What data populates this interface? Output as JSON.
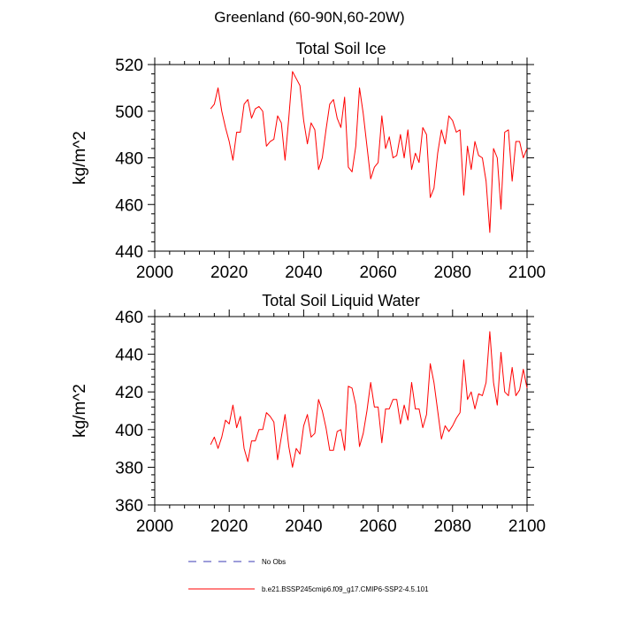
{
  "title": "Greenland (60-90N,60-20W)",
  "colors": {
    "model": "#ff0000",
    "obs": "#3b3bb5",
    "axis": "#000000"
  },
  "legend": {
    "obs_label": "No Obs",
    "model_label": "b.e21.BSSP245cmip6.f09_g17.CMIP6-SSP2-4.5.101"
  },
  "chart_data": [
    {
      "type": "line",
      "title": "Total Soil Ice",
      "xlabel": "",
      "ylabel": "kg/m^2",
      "xlim": [
        2000,
        2100
      ],
      "ylim": [
        440,
        520
      ],
      "xticks": [
        2000,
        2020,
        2040,
        2060,
        2080,
        2100
      ],
      "yticks": [
        440,
        460,
        480,
        500,
        520
      ],
      "series": [
        {
          "name": "b.e21.BSSP245cmip6.f09_g17.CMIP6-SSP2-4.5.101",
          "x": [
            2015,
            2016,
            2017,
            2018,
            2019,
            2020,
            2021,
            2022,
            2023,
            2024,
            2025,
            2026,
            2027,
            2028,
            2029,
            2030,
            2031,
            2032,
            2033,
            2034,
            2035,
            2036,
            2037,
            2038,
            2039,
            2040,
            2041,
            2042,
            2043,
            2044,
            2045,
            2046,
            2047,
            2048,
            2049,
            2050,
            2051,
            2052,
            2053,
            2054,
            2055,
            2056,
            2057,
            2058,
            2059,
            2060,
            2061,
            2062,
            2063,
            2064,
            2065,
            2066,
            2067,
            2068,
            2069,
            2070,
            2071,
            2072,
            2073,
            2074,
            2075,
            2076,
            2077,
            2078,
            2079,
            2080,
            2081,
            2082,
            2083,
            2084,
            2085,
            2086,
            2087,
            2088,
            2089,
            2090,
            2091,
            2092,
            2093,
            2094,
            2095,
            2096,
            2097,
            2098,
            2099,
            2100
          ],
          "values": [
            501,
            503,
            510,
            500,
            493,
            487,
            479,
            491,
            491,
            503,
            505,
            497,
            501,
            502,
            500,
            485,
            487,
            488,
            498,
            495,
            479,
            497,
            517,
            514,
            511,
            496,
            486,
            495,
            492,
            475,
            480,
            492,
            503,
            505,
            497,
            493,
            506,
            476,
            474,
            485,
            510,
            499,
            485,
            471,
            476,
            478,
            498,
            484,
            489,
            480,
            481,
            490,
            480,
            492,
            475,
            482,
            478,
            493,
            490,
            463,
            467,
            482,
            492,
            486,
            498,
            496,
            491,
            492,
            464,
            485,
            475,
            487,
            481,
            480,
            470,
            448,
            484,
            480,
            458,
            491,
            492,
            470,
            487,
            487,
            480,
            484
          ]
        }
      ]
    },
    {
      "type": "line",
      "title": "Total Soil Liquid Water",
      "xlabel": "",
      "ylabel": "kg/m^2",
      "xlim": [
        2000,
        2100
      ],
      "ylim": [
        360,
        460
      ],
      "xticks": [
        2000,
        2020,
        2040,
        2060,
        2080,
        2100
      ],
      "yticks": [
        360,
        380,
        400,
        420,
        440,
        460
      ],
      "series": [
        {
          "name": "b.e21.BSSP245cmip6.f09_g17.CMIP6-SSP2-4.5.101",
          "x": [
            2015,
            2016,
            2017,
            2018,
            2019,
            2020,
            2021,
            2022,
            2023,
            2024,
            2025,
            2026,
            2027,
            2028,
            2029,
            2030,
            2031,
            2032,
            2033,
            2034,
            2035,
            2036,
            2037,
            2038,
            2039,
            2040,
            2041,
            2042,
            2043,
            2044,
            2045,
            2046,
            2047,
            2048,
            2049,
            2050,
            2051,
            2052,
            2053,
            2054,
            2055,
            2056,
            2057,
            2058,
            2059,
            2060,
            2061,
            2062,
            2063,
            2064,
            2065,
            2066,
            2067,
            2068,
            2069,
            2070,
            2071,
            2072,
            2073,
            2074,
            2075,
            2076,
            2077,
            2078,
            2079,
            2080,
            2081,
            2082,
            2083,
            2084,
            2085,
            2086,
            2087,
            2088,
            2089,
            2090,
            2091,
            2092,
            2093,
            2094,
            2095,
            2096,
            2097,
            2098,
            2099,
            2100
          ],
          "values": [
            392,
            396,
            390,
            396,
            405,
            403,
            413,
            401,
            407,
            390,
            383,
            394,
            394,
            400,
            400,
            409,
            407,
            404,
            384,
            396,
            408,
            391,
            380,
            390,
            387,
            402,
            408,
            396,
            398,
            416,
            410,
            401,
            389,
            389,
            399,
            400,
            389,
            423,
            422,
            413,
            391,
            398,
            410,
            425,
            412,
            412,
            393,
            411,
            411,
            416,
            416,
            403,
            413,
            405,
            425,
            411,
            411,
            401,
            408,
            435,
            425,
            410,
            395,
            402,
            399,
            402,
            406,
            409,
            437,
            416,
            420,
            411,
            419,
            418,
            425,
            452,
            425,
            413,
            441,
            420,
            418,
            433,
            418,
            421,
            432,
            422
          ]
        }
      ]
    }
  ]
}
